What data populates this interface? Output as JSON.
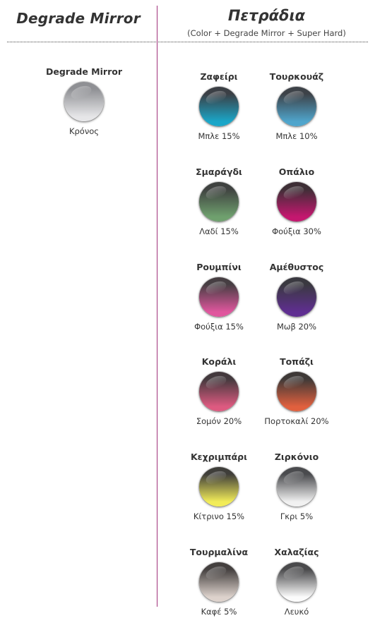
{
  "left": {
    "heading": "Degrade Mirror",
    "items": [
      {
        "name": "Degrade Mirror",
        "label": "Κρόνος",
        "top": "#8f9094",
        "bottom": "#e6e6e8"
      }
    ]
  },
  "right": {
    "heading": "Πετράδια",
    "subheading": "(Color + Degrade Mirror + Super Hard)",
    "items": [
      {
        "name": "Ζαφείρι",
        "label": "Μπλε 15%",
        "top": "#3b3f45",
        "bottom": "#1aa6c8"
      },
      {
        "name": "Τουρκουάζ",
        "label": "Μπλε 10%",
        "top": "#3d4248",
        "bottom": "#4fa5cc"
      },
      {
        "name": "Σμαράγδι",
        "label": "Λαδί 15%",
        "top": "#3f4240",
        "bottom": "#6fa06e"
      },
      {
        "name": "Οπάλιο",
        "label": "Φούξια 30%",
        "top": "#3e2f36",
        "bottom": "#c4176f"
      },
      {
        "name": "Ρουμπίνι",
        "label": "Φούξια 15%",
        "top": "#463e42",
        "bottom": "#e0569e"
      },
      {
        "name": "Αμέθυστος",
        "label": "Μωβ 20%",
        "top": "#3a3940",
        "bottom": "#5f2e91"
      },
      {
        "name": "Κοράλι",
        "label": "Σομόν 20%",
        "top": "#43393d",
        "bottom": "#dd5a80"
      },
      {
        "name": "Τοπάζι",
        "label": "Πορτοκαλί 20%",
        "top": "#3e3937",
        "bottom": "#e0603e"
      },
      {
        "name": "Κεχριμπάρι",
        "label": "Κίτρινο 15%",
        "top": "#3f3e3a",
        "bottom": "#f2ec58"
      },
      {
        "name": "Ζιρκόνιο",
        "label": "Γκρι 5%",
        "top": "#4a4b4e",
        "bottom": "#f1f1f1"
      },
      {
        "name": "Τουρμαλίνα",
        "label": "Καφέ 5%",
        "top": "#44403f",
        "bottom": "#ddd2cc"
      },
      {
        "name": "Χαλαζίας",
        "label": "Λευκό",
        "top": "#4a4a4c",
        "bottom": "#fbfbfb"
      }
    ]
  }
}
